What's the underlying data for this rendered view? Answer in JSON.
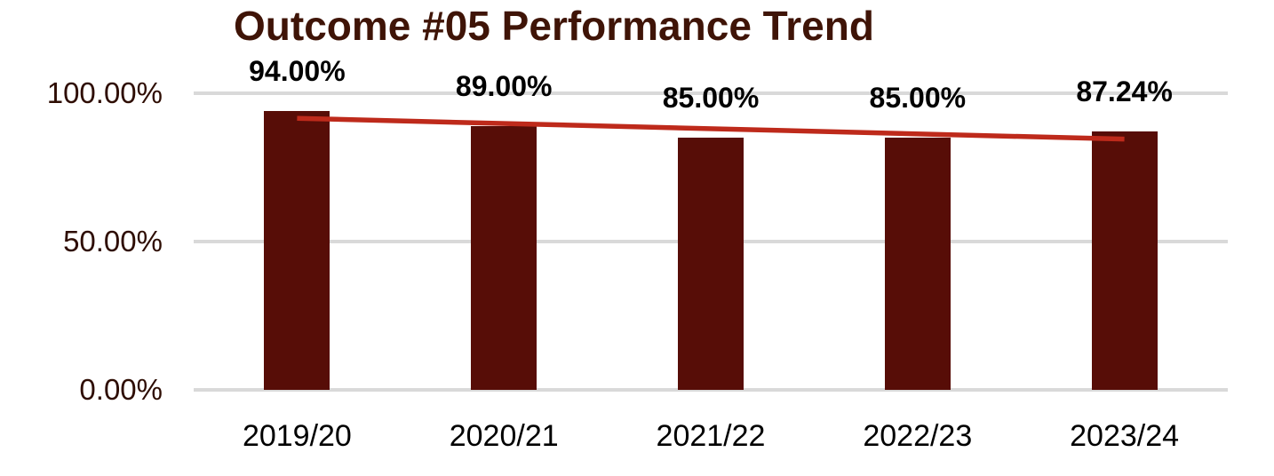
{
  "chart_data": {
    "type": "bar",
    "title": "Outcome #05 Performance Trend",
    "categories": [
      "2019/20",
      "2020/21",
      "2021/22",
      "2022/23",
      "2023/24"
    ],
    "series": [
      {
        "name": "Outcome #05",
        "values": [
          94.0,
          89.0,
          85.0,
          85.0,
          87.24
        ],
        "data_labels": [
          "94.00%",
          "89.00%",
          "85.00%",
          "85.00%",
          "87.24%"
        ]
      }
    ],
    "xlabel": "",
    "ylabel": "",
    "ylim": [
      0,
      100
    ],
    "y_ticks": [
      {
        "value": 0,
        "label": "0.00%"
      },
      {
        "value": 50,
        "label": "50.00%"
      },
      {
        "value": 100,
        "label": "100.00%"
      }
    ],
    "grid": "horizontal",
    "legend": "none",
    "trendline": {
      "type": "linear",
      "series": "Outcome #05"
    },
    "colors": {
      "bar": "#570D07",
      "trendline": "#BE2A1B",
      "gridline": "#D9D9D9",
      "title": "#3F1407",
      "axis_tick_label": "#2E0D03",
      "category_label": "#000000",
      "data_label": "#000000",
      "background": "#FFFFFF"
    }
  }
}
